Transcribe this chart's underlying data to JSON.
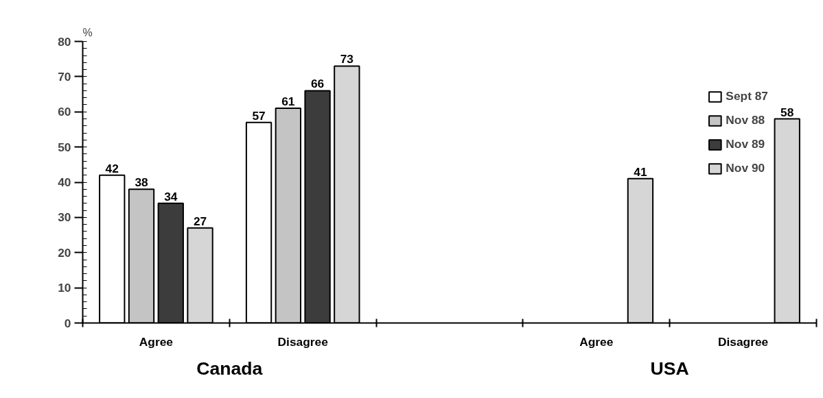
{
  "chart_data": {
    "type": "bar",
    "ylabel": "%",
    "categories": [
      "Agree",
      "Disagree",
      null,
      "Agree",
      "Disagree"
    ],
    "series": [
      {
        "name": "Sept 87",
        "color": "#ffffff",
        "values": [
          42,
          57,
          null,
          null,
          null
        ]
      },
      {
        "name": "Nov 88",
        "color": "#c4c4c4",
        "values": [
          38,
          61,
          null,
          null,
          null
        ]
      },
      {
        "name": "Nov 89",
        "color": "#3c3c3c",
        "values": [
          34,
          66,
          null,
          null,
          null
        ]
      },
      {
        "name": "Nov 90",
        "color": "#d6d6d6",
        "values": [
          27,
          73,
          null,
          41,
          58
        ]
      }
    ],
    "ylim": [
      0,
      80
    ],
    "yticks": [
      0,
      10,
      20,
      30,
      40,
      50,
      60,
      70,
      80
    ],
    "data_labels": true,
    "grid": false,
    "legend": "top right",
    "annotations": [
      "Canada",
      "USA"
    ]
  }
}
